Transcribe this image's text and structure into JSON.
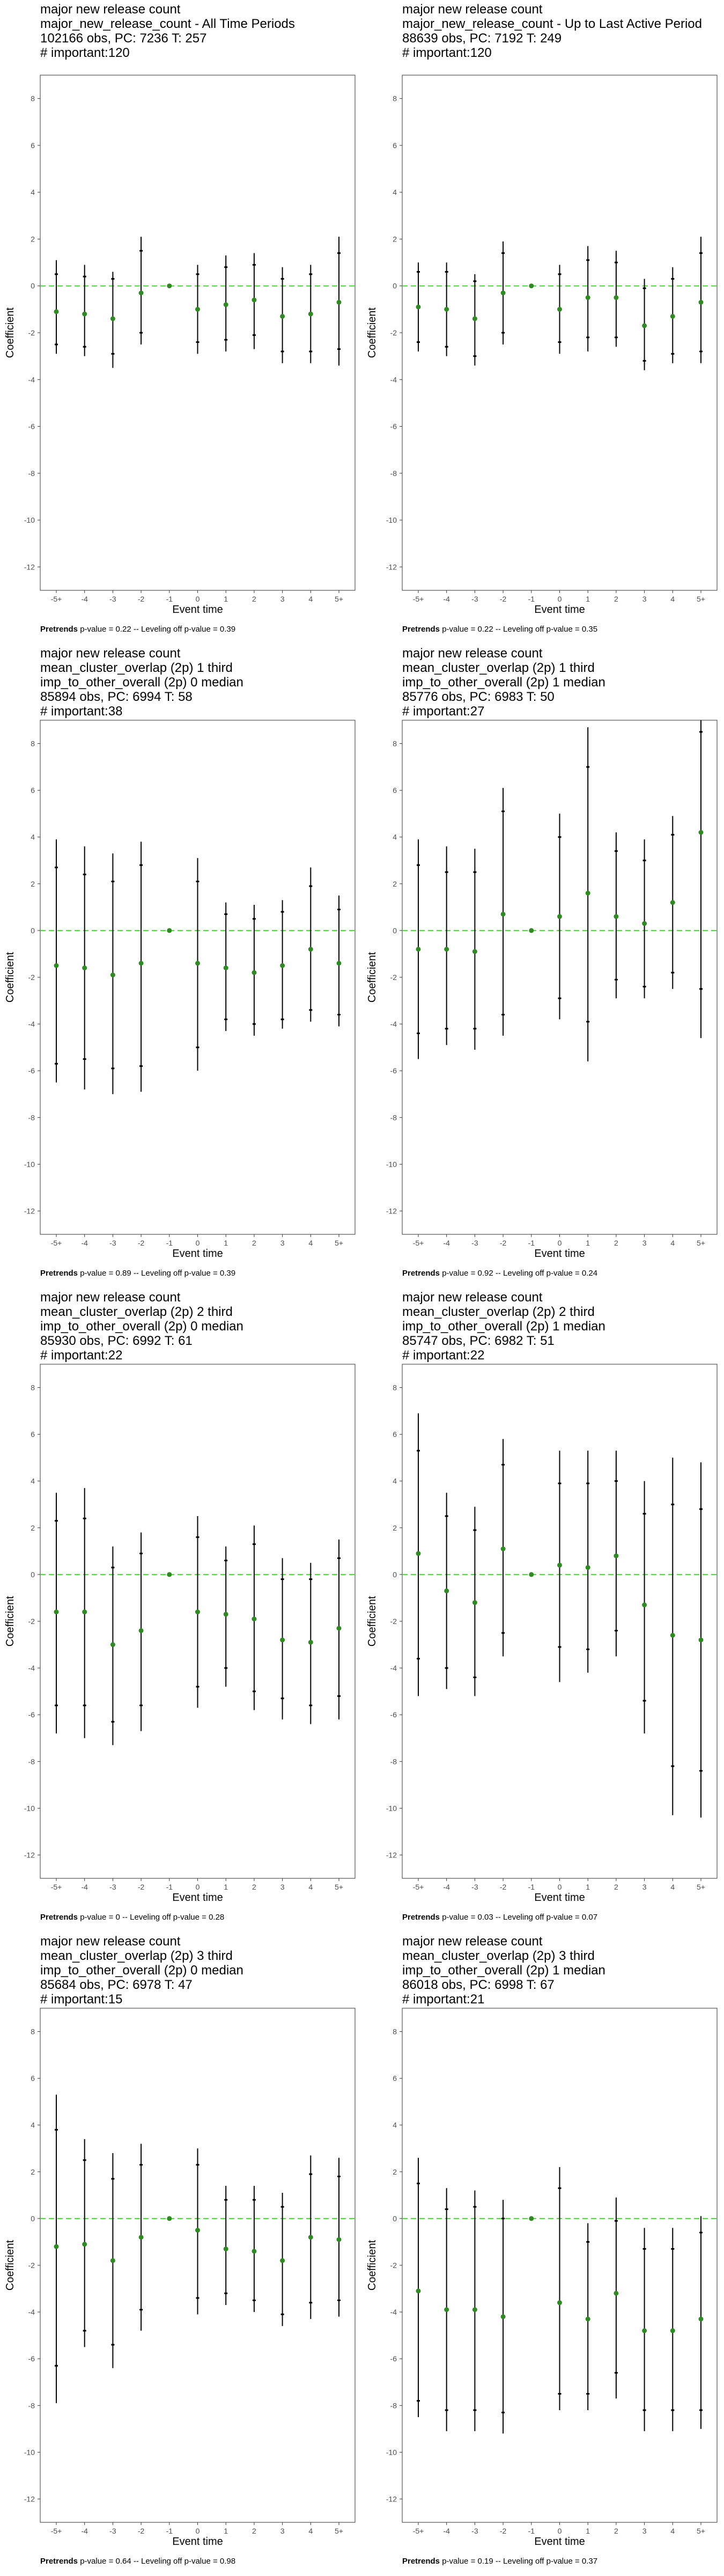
{
  "common": {
    "ylabel": "Coefficient",
    "xlabel": "Event time",
    "x_ticks": [
      "-5+",
      "-4",
      "-3",
      "-2",
      "-1",
      "0",
      "1",
      "2",
      "3",
      "4",
      "5+"
    ],
    "y_ticks": [
      8,
      6,
      4,
      2,
      0,
      -2,
      -4,
      -6,
      -8,
      -10,
      -12
    ],
    "ylim": [
      -13,
      9
    ],
    "colors": {
      "point": "#2e8b22",
      "reference": "#4cd43a",
      "bar": "#000000",
      "panel_border": "#333333"
    }
  },
  "panels": [
    {
      "title_lines": [
        "major new release count",
        "major_new_release_count - All Time Periods",
        "102166 obs, PC: 7236 T: 257",
        "# important:120"
      ],
      "footer_label": "Pretrends",
      "footer_text": " p-value = 0.22 -- Leveling off p-value = 0.39"
    },
    {
      "title_lines": [
        "major new release count",
        "major_new_release_count - Up to Last Active Period",
        "88639 obs, PC: 7192 T: 249",
        "# important:120"
      ],
      "footer_label": "Pretrends",
      "footer_text": " p-value = 0.22 -- Leveling off p-value = 0.35"
    },
    {
      "title_lines": [
        "major new release count",
        "mean_cluster_overlap (2p) 1 third",
        "imp_to_other_overall (2p) 0 median",
        "85894 obs, PC: 6994 T: 58",
        "# important:38"
      ],
      "footer_label": "Pretrends",
      "footer_text": " p-value = 0.89 -- Leveling off p-value = 0.39"
    },
    {
      "title_lines": [
        "major new release count",
        "mean_cluster_overlap (2p) 1 third",
        "imp_to_other_overall (2p) 1 median",
        "85776 obs, PC: 6983 T: 50",
        "# important:27"
      ],
      "footer_label": "Pretrends",
      "footer_text": " p-value = 0.92 -- Leveling off p-value = 0.24"
    },
    {
      "title_lines": [
        "major new release count",
        "mean_cluster_overlap (2p) 2 third",
        "imp_to_other_overall (2p) 0 median",
        "85930 obs, PC: 6992 T: 61",
        "# important:22"
      ],
      "footer_label": "Pretrends",
      "footer_text": " p-value = 0 -- Leveling off p-value = 0.28"
    },
    {
      "title_lines": [
        "major new release count",
        "mean_cluster_overlap (2p) 2 third",
        "imp_to_other_overall (2p) 1 median",
        "85747 obs, PC: 6982 T: 51",
        "# important:22"
      ],
      "footer_label": "Pretrends",
      "footer_text": " p-value = 0.03 -- Leveling off p-value = 0.07"
    },
    {
      "title_lines": [
        "major new release count",
        "mean_cluster_overlap (2p) 3 third",
        "imp_to_other_overall (2p) 0 median",
        "85684 obs, PC: 6978 T: 47",
        "# important:15"
      ],
      "footer_label": "Pretrends",
      "footer_text": " p-value = 0.64 -- Leveling off p-value = 0.98"
    },
    {
      "title_lines": [
        "major new release count",
        "mean_cluster_overlap (2p) 3 third",
        "imp_to_other_overall (2p) 1 median",
        "86018 obs, PC: 6998 T: 67",
        "# important:21"
      ],
      "footer_label": "Pretrends",
      "footer_text": " p-value = 0.19 -- Leveling off p-value = 0.37"
    }
  ],
  "chart_data": [
    {
      "type": "scatter",
      "x": [
        "-5+",
        "-4",
        "-3",
        "-2",
        "-1",
        "0",
        "1",
        "2",
        "3",
        "4",
        "5+"
      ],
      "series": [
        {
          "coef": [
            -1.1,
            -1.2,
            -1.4,
            -0.3,
            0,
            -1.0,
            -0.8,
            -0.6,
            -1.3,
            -1.2,
            -0.7
          ],
          "ci90_low": [
            -2.5,
            -2.6,
            -2.9,
            -2.0,
            0,
            -2.4,
            -2.3,
            -2.1,
            -2.8,
            -2.8,
            -2.7
          ],
          "ci90_high": [
            0.5,
            0.4,
            0.3,
            1.5,
            0,
            0.5,
            0.8,
            0.9,
            0.3,
            0.5,
            1.4
          ],
          "ci95_low": [
            -2.9,
            -3.0,
            -3.5,
            -2.5,
            0,
            -2.9,
            -2.8,
            -2.7,
            -3.3,
            -3.3,
            -3.4
          ],
          "ci95_high": [
            1.1,
            0.9,
            0.6,
            2.1,
            0,
            0.9,
            1.3,
            1.4,
            0.8,
            0.9,
            2.1
          ]
        }
      ],
      "reference_line": 0,
      "ylim": [
        -13,
        9
      ],
      "xlabel": "Event time",
      "ylabel": "Coefficient"
    },
    {
      "type": "scatter",
      "x": [
        "-5+",
        "-4",
        "-3",
        "-2",
        "-1",
        "0",
        "1",
        "2",
        "3",
        "4",
        "5+"
      ],
      "series": [
        {
          "coef": [
            -0.9,
            -1.0,
            -1.4,
            -0.3,
            0,
            -1.0,
            -0.5,
            -0.5,
            -1.7,
            -1.3,
            -0.7
          ],
          "ci90_low": [
            -2.4,
            -2.6,
            -3.0,
            -2.0,
            0,
            -2.4,
            -2.2,
            -2.2,
            -3.2,
            -2.9,
            -2.8
          ],
          "ci90_high": [
            0.6,
            0.6,
            0.2,
            1.4,
            0,
            0.5,
            1.1,
            1.0,
            -0.1,
            0.3,
            1.4
          ],
          "ci95_low": [
            -2.8,
            -3.0,
            -3.4,
            -2.5,
            0,
            -2.9,
            -2.8,
            -2.6,
            -3.6,
            -3.3,
            -3.3
          ],
          "ci95_high": [
            1.0,
            1.0,
            0.5,
            1.9,
            0,
            0.9,
            1.7,
            1.5,
            0.3,
            0.8,
            2.1
          ]
        }
      ],
      "reference_line": 0,
      "ylim": [
        -13,
        9
      ],
      "xlabel": "Event time",
      "ylabel": "Coefficient"
    },
    {
      "type": "scatter",
      "x": [
        "-5+",
        "-4",
        "-3",
        "-2",
        "-1",
        "0",
        "1",
        "2",
        "3",
        "4",
        "5+"
      ],
      "series": [
        {
          "coef": [
            -1.5,
            -1.6,
            -1.9,
            -1.4,
            0,
            -1.4,
            -1.6,
            -1.8,
            -1.5,
            -0.8,
            -1.4
          ],
          "ci90_low": [
            -5.7,
            -5.5,
            -5.9,
            -5.8,
            0,
            -5.0,
            -3.8,
            -4.0,
            -3.8,
            -3.4,
            -3.6
          ],
          "ci90_high": [
            2.7,
            2.4,
            2.1,
            2.8,
            0,
            2.1,
            0.7,
            0.5,
            0.8,
            1.9,
            0.9
          ],
          "ci95_low": [
            -6.5,
            -6.8,
            -7.0,
            -6.9,
            0,
            -6.0,
            -4.3,
            -4.5,
            -4.2,
            -3.9,
            -4.1
          ],
          "ci95_high": [
            3.9,
            3.6,
            3.3,
            3.8,
            0,
            3.1,
            1.2,
            1.1,
            1.3,
            2.7,
            1.5
          ]
        }
      ],
      "reference_line": 0,
      "ylim": [
        -13,
        9
      ],
      "xlabel": "Event time",
      "ylabel": "Coefficient"
    },
    {
      "type": "scatter",
      "x": [
        "-5+",
        "-4",
        "-3",
        "-2",
        "-1",
        "0",
        "1",
        "2",
        "3",
        "4",
        "5+"
      ],
      "series": [
        {
          "coef": [
            -0.8,
            -0.8,
            -0.9,
            0.7,
            0,
            0.6,
            1.6,
            0.6,
            0.3,
            1.2,
            4.2
          ],
          "ci90_low": [
            -4.4,
            -4.2,
            -4.2,
            -3.6,
            0,
            -2.9,
            -3.9,
            -2.1,
            -2.4,
            -1.8,
            -2.5
          ],
          "ci90_high": [
            2.8,
            2.5,
            2.5,
            5.1,
            0,
            4.0,
            7.0,
            3.4,
            3.0,
            4.1,
            8.5
          ],
          "ci95_low": [
            -5.5,
            -4.9,
            -5.1,
            -4.5,
            0,
            -3.8,
            -5.6,
            -2.9,
            -2.9,
            -2.5,
            -4.6
          ],
          "ci95_high": [
            3.9,
            3.6,
            3.5,
            6.1,
            0,
            5.0,
            8.7,
            4.2,
            3.9,
            4.9,
            9.0
          ]
        }
      ],
      "reference_line": 0,
      "ylim": [
        -13,
        9
      ],
      "xlabel": "Event time",
      "ylabel": "Coefficient"
    },
    {
      "type": "scatter",
      "x": [
        "-5+",
        "-4",
        "-3",
        "-2",
        "-1",
        "0",
        "1",
        "2",
        "3",
        "4",
        "5+"
      ],
      "series": [
        {
          "coef": [
            -1.6,
            -1.6,
            -3.0,
            -2.4,
            0,
            -1.6,
            -1.7,
            -1.9,
            -2.8,
            -2.9,
            -2.3
          ],
          "ci90_low": [
            -5.6,
            -5.6,
            -6.3,
            -5.6,
            0,
            -4.8,
            -4.0,
            -5.0,
            -5.3,
            -5.6,
            -5.2
          ],
          "ci90_high": [
            2.3,
            2.4,
            0.3,
            0.9,
            0,
            1.6,
            0.6,
            1.3,
            -0.2,
            -0.2,
            0.7
          ],
          "ci95_low": [
            -6.8,
            -7.0,
            -7.3,
            -6.7,
            0,
            -5.7,
            -4.8,
            -5.8,
            -6.2,
            -6.4,
            -6.2
          ],
          "ci95_high": [
            3.5,
            3.7,
            1.2,
            1.8,
            0,
            2.5,
            1.2,
            2.1,
            0.7,
            0.5,
            1.5
          ]
        }
      ],
      "reference_line": 0,
      "ylim": [
        -13,
        9
      ],
      "xlabel": "Event time",
      "ylabel": "Coefficient"
    },
    {
      "type": "scatter",
      "x": [
        "-5+",
        "-4",
        "-3",
        "-2",
        "-1",
        "0",
        "1",
        "2",
        "3",
        "4",
        "5+"
      ],
      "series": [
        {
          "coef": [
            0.9,
            -0.7,
            -1.2,
            1.1,
            0,
            0.4,
            0.3,
            0.8,
            -1.3,
            -2.6,
            -2.8
          ],
          "ci90_low": [
            -3.6,
            -4.0,
            -4.4,
            -2.5,
            0,
            -3.1,
            -3.2,
            -2.4,
            -5.4,
            -8.2,
            -8.4
          ],
          "ci90_high": [
            5.3,
            2.5,
            1.9,
            4.7,
            0,
            3.9,
            3.9,
            4.0,
            2.6,
            3.0,
            2.8
          ],
          "ci95_low": [
            -5.2,
            -4.9,
            -5.2,
            -3.5,
            0,
            -4.6,
            -4.2,
            -3.5,
            -6.8,
            -10.3,
            -10.4
          ],
          "ci95_high": [
            6.9,
            3.5,
            2.9,
            5.8,
            0,
            5.3,
            5.3,
            5.3,
            4.0,
            5.0,
            4.8
          ]
        }
      ],
      "reference_line": 0,
      "ylim": [
        -13,
        9
      ],
      "xlabel": "Event time",
      "ylabel": "Coefficient"
    },
    {
      "type": "scatter",
      "x": [
        "-5+",
        "-4",
        "-3",
        "-2",
        "-1",
        "0",
        "1",
        "2",
        "3",
        "4",
        "5+"
      ],
      "series": [
        {
          "coef": [
            -1.2,
            -1.1,
            -1.8,
            -0.8,
            0,
            -0.5,
            -1.3,
            -1.4,
            -1.8,
            -0.8,
            -0.9
          ],
          "ci90_low": [
            -6.3,
            -4.8,
            -5.4,
            -3.9,
            0,
            -3.4,
            -3.2,
            -3.5,
            -4.1,
            -3.6,
            -3.5
          ],
          "ci90_high": [
            3.8,
            2.5,
            1.7,
            2.3,
            0,
            2.3,
            0.8,
            0.8,
            0.5,
            1.9,
            1.8
          ],
          "ci95_low": [
            -7.9,
            -5.5,
            -6.4,
            -4.8,
            0,
            -4.1,
            -3.7,
            -4.0,
            -4.6,
            -4.3,
            -4.2
          ],
          "ci95_high": [
            5.3,
            3.4,
            2.8,
            3.2,
            0,
            3.0,
            1.4,
            1.4,
            1.1,
            2.7,
            2.6
          ]
        }
      ],
      "reference_line": 0,
      "ylim": [
        -13,
        9
      ],
      "xlabel": "Event time",
      "ylabel": "Coefficient"
    },
    {
      "type": "scatter",
      "x": [
        "-5+",
        "-4",
        "-3",
        "-2",
        "-1",
        "0",
        "1",
        "2",
        "3",
        "4",
        "5+"
      ],
      "series": [
        {
          "coef": [
            -3.1,
            -3.9,
            -3.9,
            -4.2,
            0,
            -3.6,
            -4.3,
            -3.2,
            -4.8,
            -4.8,
            -4.3
          ],
          "ci90_low": [
            -7.8,
            -8.2,
            -8.2,
            -8.3,
            0,
            -7.5,
            -7.5,
            -6.6,
            -8.2,
            -8.2,
            -8.2
          ],
          "ci90_high": [
            1.5,
            0.4,
            0.5,
            0.0,
            0,
            1.3,
            -1.0,
            -0.1,
            -1.3,
            -1.3,
            -0.6
          ],
          "ci95_low": [
            -8.5,
            -9.1,
            -9.1,
            -9.2,
            0,
            -8.2,
            -8.2,
            -7.7,
            -9.1,
            -9.1,
            -9.0
          ],
          "ci95_high": [
            2.6,
            1.3,
            1.2,
            0.8,
            0,
            2.2,
            -0.2,
            0.9,
            -0.4,
            -0.4,
            0.1
          ]
        }
      ],
      "reference_line": 0,
      "ylim": [
        -13,
        9
      ],
      "xlabel": "Event time",
      "ylabel": "Coefficient"
    }
  ]
}
